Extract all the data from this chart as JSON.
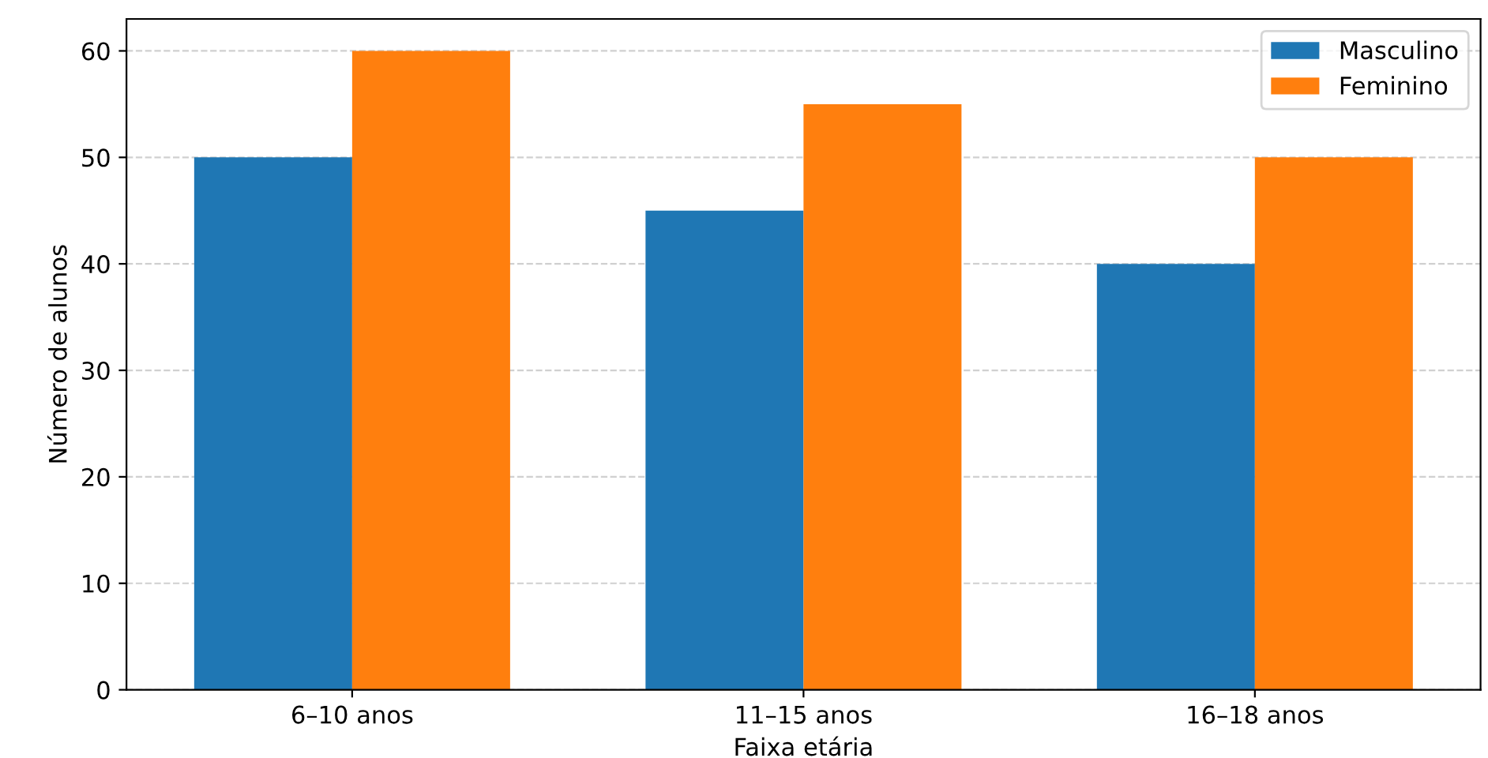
{
  "chart_data": {
    "type": "bar",
    "xlabel": "Faixa etária",
    "ylabel": "Número de alunos",
    "categories": [
      "6–10 anos",
      "11–15 anos",
      "16–18 anos"
    ],
    "series": [
      {
        "name": "Masculino",
        "color": "#1f77b4",
        "values": [
          50,
          45,
          40
        ]
      },
      {
        "name": "Feminino",
        "color": "#ff7f0e",
        "values": [
          60,
          55,
          50
        ]
      }
    ],
    "ylim": [
      0,
      63
    ],
    "yticks": [
      0,
      10,
      20,
      30,
      40,
      50,
      60
    ],
    "grid": "y",
    "legend": "top right"
  }
}
